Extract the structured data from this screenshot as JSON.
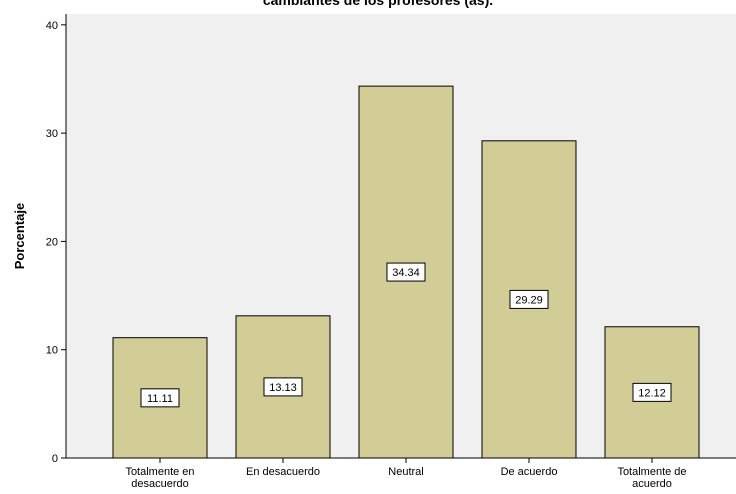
{
  "chart_data": {
    "type": "bar",
    "title": "cambiantes de los profesores (as).",
    "xlabel": "",
    "ylabel": "Porcentaje",
    "ylim": [
      0,
      41
    ],
    "yticks": [
      0,
      10,
      20,
      30,
      40
    ],
    "grid": false,
    "categories": [
      [
        "Totalmente en",
        "desacuerdo"
      ],
      [
        "En desacuerdo"
      ],
      [
        "Neutral"
      ],
      [
        "De acuerdo"
      ],
      [
        "Totalmente de",
        "acuerdo"
      ]
    ],
    "values": [
      11.11,
      13.13,
      34.34,
      29.29,
      12.12
    ],
    "data_labels": [
      "11.11",
      "13.13",
      "34.34",
      "29.29",
      "12.12"
    ],
    "colors": {
      "bar_fill": "#d2cc96",
      "bar_stroke": "#000000",
      "plot_background": "#f0f0f0",
      "label_box": "#ffffff"
    }
  }
}
